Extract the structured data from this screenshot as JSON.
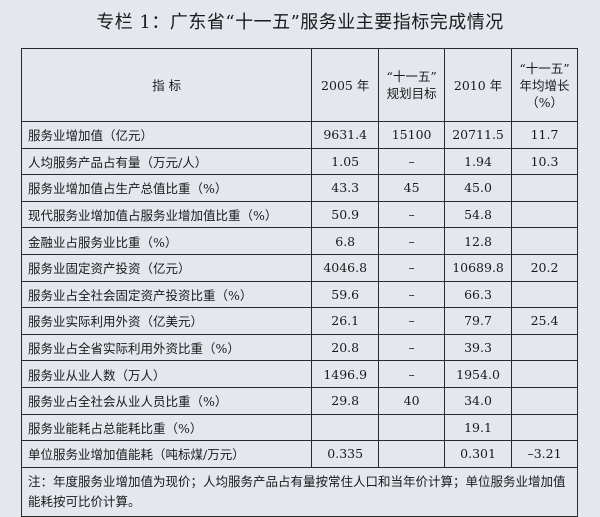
{
  "title": "专栏 1：广东省“十一五”服务业主要指标完成情况",
  "headers": [
    "指 标",
    "2005 年",
    "“十一五”\n规划目标",
    "2010 年",
    "“十一五”\n年均增长\n（%）"
  ],
  "rows": [
    [
      "服务业增加值（亿元）",
      "9631.4",
      "15100",
      "20711.5",
      "11.7"
    ],
    [
      "人均服务产品占有量（万元/人）",
      "1.05",
      "–",
      "1.94",
      "10.3"
    ],
    [
      "服务业增加值占生产总值比重（%）",
      "43.3",
      "45",
      "45.0",
      ""
    ],
    [
      "现代服务业增加值占服务业增加值比重（%）",
      "50.9",
      "–",
      "54.8",
      ""
    ],
    [
      "金融业占服务业比重（%）",
      "6.8",
      "–",
      "12.8",
      ""
    ],
    [
      "服务业固定资产投资（亿元）",
      "4046.8",
      "–",
      "10689.8",
      "20.2"
    ],
    [
      "服务业占全社会固定资产投资比重（%）",
      "59.6",
      "–",
      "66.3",
      ""
    ],
    [
      "服务业实际利用外资（亿美元）",
      "26.1",
      "–",
      "79.7",
      "25.4"
    ],
    [
      "服务业占全省实际利用外资比重（%）",
      "20.8",
      "–",
      "39.3",
      ""
    ],
    [
      "服务业从业人数（万人）",
      "1496.9",
      "–",
      "1954.0",
      ""
    ],
    [
      "服务业占全社会从业人员比重（%）",
      "29.8",
      "40",
      "34.0",
      ""
    ],
    [
      "服务业能耗占总能耗比重（%）",
      "",
      "",
      "19.1",
      ""
    ],
    [
      "单位服务业增加值能耗（吨标煤/万元）",
      "0.335",
      "",
      "0.301",
      "–3.21"
    ]
  ],
  "note": "注：年度服务业增加值为现价；人均服务产品占有量按常住人口和当年价计算；单位服务业增加值能耗按可比价计算。"
}
